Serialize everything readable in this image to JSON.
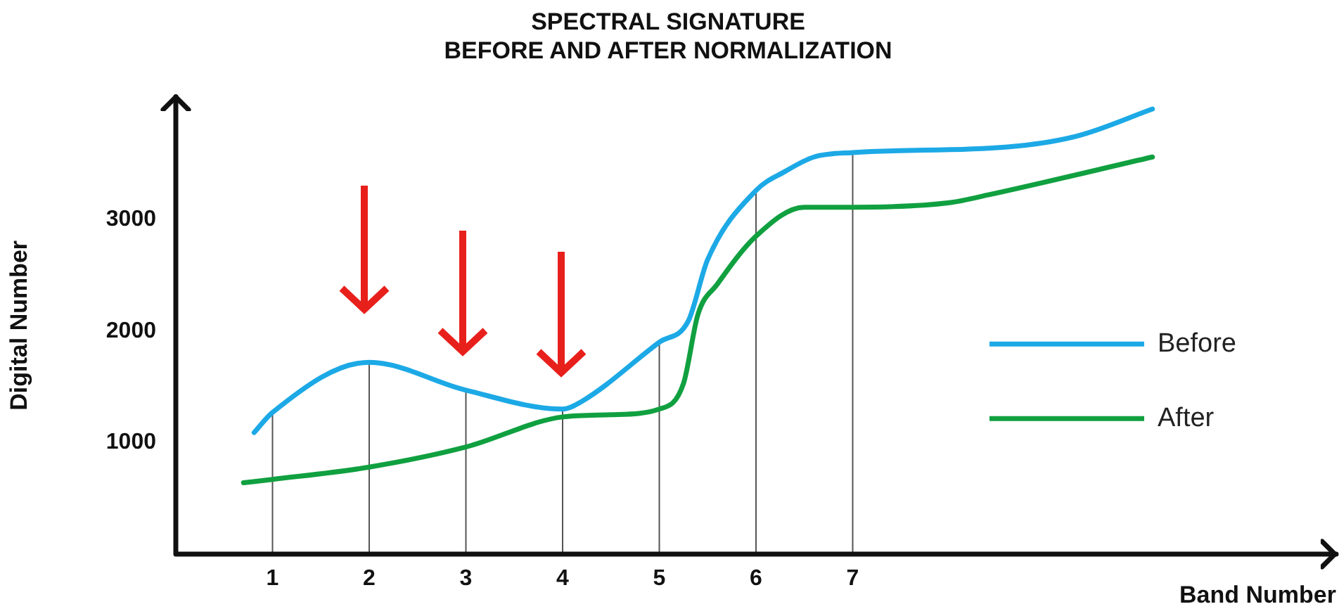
{
  "chart_data": {
    "type": "line",
    "title": "SPECTRAL SIGNATURE\nBEFORE AND AFTER NORMALIZATION",
    "xlabel": "Band Number",
    "ylabel": "Digital Number",
    "xlim": [
      0,
      12
    ],
    "xticks": [
      1,
      2,
      3,
      4,
      5,
      6,
      7
    ],
    "ylim": [
      0,
      4100
    ],
    "yticks": [
      1000,
      2000,
      3000
    ],
    "grid": false,
    "legend": "right",
    "marker": "none",
    "line_style": "solid",
    "series": [
      {
        "name": "Before",
        "color": "#1ca9e6",
        "x": [
          0.81,
          1,
          2,
          3,
          4,
          4.2,
          5,
          5.3,
          5.5,
          6,
          6.3,
          6.6,
          7,
          8.6,
          9.33,
          10.1
        ],
        "values": [
          1090,
          1270,
          1720,
          1470,
          1300,
          1370,
          1900,
          2090,
          2640,
          3260,
          3430,
          3560,
          3600,
          3650,
          3750,
          3990
        ]
      },
      {
        "name": "After",
        "color": "#10a040",
        "x": [
          0.7,
          1,
          2,
          3,
          4,
          4.5,
          5,
          5.25,
          5.4,
          5.6,
          6,
          6.5,
          7,
          8.0,
          8.4,
          10.1
        ],
        "values": [
          640,
          670,
          780,
          960,
          1230,
          1250,
          1300,
          1530,
          2150,
          2420,
          2850,
          3110,
          3110,
          3150,
          3220,
          3560
        ]
      }
    ],
    "ref_lines": [
      {
        "axis": "x",
        "value": 1,
        "color": "#555555"
      },
      {
        "axis": "x",
        "value": 2,
        "color": "#555555"
      },
      {
        "axis": "x",
        "value": 3,
        "color": "#555555"
      },
      {
        "axis": "x",
        "value": 4,
        "color": "#555555"
      },
      {
        "axis": "x",
        "value": 5,
        "color": "#555555"
      },
      {
        "axis": "x",
        "value": 6,
        "color": "#555555"
      },
      {
        "axis": "x",
        "value": 7,
        "color": "#555555"
      }
    ]
  }
}
